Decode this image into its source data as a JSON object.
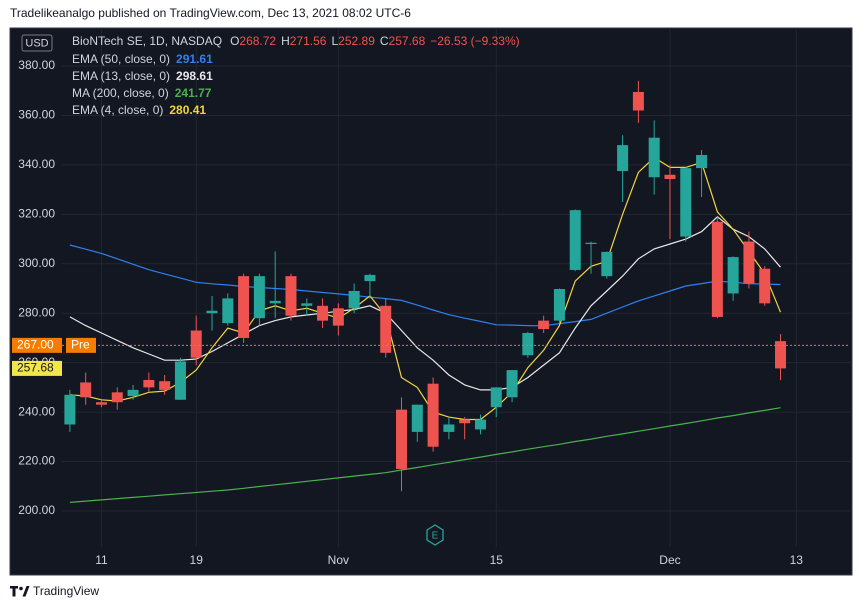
{
  "header": "Tradelikeanalgo published on TradingView.com, Dec 13, 2021 08:02 UTC-6",
  "footer": "TradingView",
  "chart_data": {
    "type": "candlestick",
    "currency": "USD",
    "symbol": "BioNTech SE, 1D, NASDAQ",
    "ohlc_legend": [
      {
        "key": "O",
        "value": "268.72"
      },
      {
        "key": "H",
        "value": "271.56"
      },
      {
        "key": "L",
        "value": "252.89"
      },
      {
        "key": "C",
        "value": "257.68"
      }
    ],
    "change": "−26.53 (−9.33%)",
    "up_color": "#26a69a",
    "down_color": "#ef5350",
    "open": [
      235,
      252,
      244,
      248,
      246.5,
      253,
      252.5,
      245,
      273,
      280,
      276,
      295,
      278,
      284,
      295,
      283,
      283,
      282,
      282,
      293,
      283,
      241,
      232,
      251.5,
      232,
      237,
      233,
      242,
      246,
      263,
      277,
      277,
      297.5,
      308,
      295,
      337.5,
      369.5,
      335,
      336,
      311,
      338.7,
      317,
      288,
      309,
      298,
      268.72
    ],
    "high": [
      249,
      256,
      245,
      250,
      251,
      256,
      255,
      262,
      279,
      287,
      288,
      296,
      296,
      305,
      296,
      286,
      286,
      284,
      292,
      296,
      286,
      246,
      243,
      254,
      238,
      238,
      239,
      250,
      257,
      272.5,
      279,
      290,
      322,
      309,
      305,
      352,
      374,
      358,
      340,
      339,
      346,
      319,
      303,
      313,
      299,
      271.56
    ],
    "low": [
      232,
      243,
      242,
      241,
      245,
      248,
      247,
      245,
      259,
      273,
      275,
      268,
      275,
      278,
      277,
      279,
      274,
      271,
      280,
      286,
      262,
      208,
      228,
      224,
      229,
      229,
      231,
      238,
      244,
      262,
      272,
      276,
      297,
      296,
      294,
      325,
      357,
      328,
      310,
      309,
      327,
      278,
      285,
      290,
      283,
      252.89
    ],
    "close": [
      247,
      246,
      243,
      244,
      249,
      250,
      249,
      260.5,
      262,
      281,
      286,
      270,
      295,
      285,
      279,
      284,
      277,
      275,
      289,
      295.5,
      264,
      217,
      243,
      226,
      235,
      235.5,
      237,
      250,
      257,
      272,
      273.6,
      289.8,
      321.7,
      308.5,
      304.8,
      348,
      362,
      351,
      334.3,
      338.7,
      344,
      278.5,
      302.7,
      292,
      284,
      257.68
    ],
    "indicators": [
      {
        "name": "EMA (50, close, 0)",
        "value_label": "291.61",
        "color": "#2f80ed",
        "values": [
          307.6,
          305.9,
          304.2,
          302,
          299.8,
          297.6,
          295.9,
          294.2,
          292.5,
          291.9,
          291.4,
          290.8,
          290.4,
          290,
          289.6,
          289,
          288.4,
          287.8,
          287.2,
          286.5,
          285.9,
          285.2,
          283.3,
          281.3,
          279.4,
          278,
          276.7,
          275.3,
          275.2,
          275,
          274.9,
          275.8,
          276.6,
          277.5,
          280,
          282.5,
          285,
          287,
          289,
          291,
          292,
          293,
          292.5,
          292,
          291.8,
          291.6
        ]
      },
      {
        "name": "EMA (13, close, 0)",
        "value_label": "298.61",
        "color": "#e8e8e8",
        "values": [
          278.5,
          275,
          272,
          269,
          266,
          263.5,
          261,
          261,
          261.5,
          264.5,
          268,
          271.5,
          275,
          277,
          278.5,
          279.3,
          280,
          280.8,
          281.5,
          283,
          280,
          273,
          266,
          261,
          255,
          251,
          249,
          249,
          250,
          254,
          259,
          264,
          274,
          283,
          289,
          295,
          302,
          306,
          308,
          310,
          313,
          319,
          314,
          311,
          306,
          298.6
        ]
      },
      {
        "name": "MA (200, close, 0)",
        "value_label": "241.77",
        "color": "#4caf50",
        "values": [
          203.5,
          204,
          204.5,
          205,
          205.5,
          206,
          206.5,
          207,
          207.5,
          208,
          208.5,
          209.2,
          209.9,
          210.6,
          211.3,
          212,
          212.7,
          213.4,
          214.1,
          214.8,
          215.5,
          216.6,
          217.6,
          218.7,
          219.7,
          220.8,
          221.8,
          222.9,
          223.9,
          225,
          226,
          227,
          228.1,
          229.1,
          230.2,
          231.2,
          232.3,
          233.3,
          234.4,
          235.4,
          236.5,
          237.6,
          238.6,
          239.7,
          240.7,
          241.8
        ]
      },
      {
        "name": "EMA (4, close, 0)",
        "value_label": "280.41",
        "color": "#f2d53c",
        "values": [
          247,
          246.5,
          245,
          244.5,
          246,
          248,
          248.5,
          252,
          257,
          266,
          274,
          272,
          281,
          283,
          281,
          282,
          280,
          278,
          282,
          287,
          279,
          254,
          250,
          240,
          238,
          237,
          237,
          242,
          248,
          258,
          265,
          275,
          293,
          299,
          301,
          320,
          337,
          343,
          339,
          339,
          341,
          321,
          314,
          305,
          296,
          280.4
        ]
      }
    ],
    "price_labels": [
      {
        "value": 267,
        "label": "267.00",
        "tag": "Pre",
        "color": "#f57c00"
      },
      {
        "value": 257.68,
        "label": "257.68",
        "color": "#f2e64a"
      }
    ],
    "ylim": [
      185.44,
      395.37
    ],
    "yticks": [
      {
        "value": 200,
        "label": "200.00"
      },
      {
        "value": 220,
        "label": "220.00"
      },
      {
        "value": 240,
        "label": "240.00"
      },
      {
        "value": 260,
        "label": "260.00"
      },
      {
        "value": 280,
        "label": "280.00"
      },
      {
        "value": 300,
        "label": "300.00"
      },
      {
        "value": 320,
        "label": "320.00"
      },
      {
        "value": 340,
        "label": "340.00"
      },
      {
        "value": 360,
        "label": "360.00"
      },
      {
        "value": 380,
        "label": "380.00"
      }
    ],
    "xlim": [
      -0.5,
      49.4
    ],
    "xticks": [
      {
        "value": 2,
        "label": "11"
      },
      {
        "value": 8,
        "label": "19"
      },
      {
        "value": 17,
        "label": "Nov"
      },
      {
        "value": 27,
        "label": "15"
      },
      {
        "value": 38,
        "label": "Dec"
      },
      {
        "value": 46,
        "label": "13"
      }
    ],
    "grid": true
  }
}
